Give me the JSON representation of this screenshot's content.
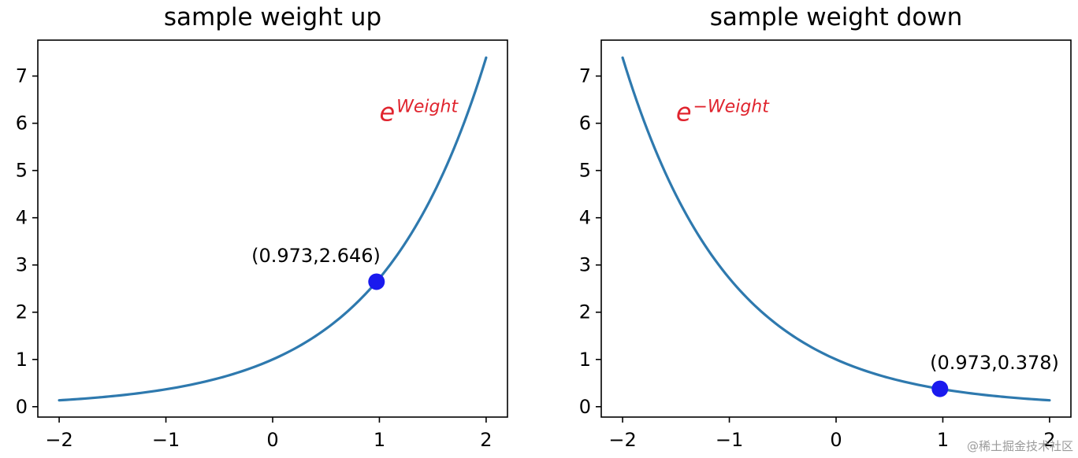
{
  "chart_data": [
    {
      "type": "line",
      "title": "sample weight up",
      "xlabel": "",
      "ylabel": "",
      "xlim": [
        -2.2,
        2.2
      ],
      "ylim": [
        -0.22,
        7.76
      ],
      "x_ticks": [
        -2,
        -1,
        0,
        1,
        2
      ],
      "x_tick_labels": [
        "−2",
        "−1",
        "0",
        "1",
        "2"
      ],
      "y_ticks": [
        0,
        1,
        2,
        3,
        4,
        5,
        6,
        7
      ],
      "y_tick_labels": [
        "0",
        "1",
        "2",
        "3",
        "4",
        "5",
        "6",
        "7"
      ],
      "series": [
        {
          "name": "exp(weight)",
          "function": "exp",
          "x_range": [
            -2,
            2
          ],
          "x": [
            -2,
            -1.5,
            -1,
            -0.5,
            0,
            0.5,
            1,
            1.5,
            2
          ],
          "y": [
            0.135,
            0.223,
            0.368,
            0.607,
            1.0,
            1.649,
            2.718,
            4.482,
            7.389
          ],
          "color": "#2e79ae"
        }
      ],
      "point": {
        "x": 0.973,
        "y": 2.646,
        "label": "(0.973,2.646)",
        "color": "#1a1aee"
      },
      "equation": {
        "base": "e",
        "exponent": "Weight",
        "x": 1.0,
        "y": 6.05,
        "color": "#e0242e"
      }
    },
    {
      "type": "line",
      "title": "sample weight down",
      "xlabel": "",
      "ylabel": "",
      "xlim": [
        -2.2,
        2.2
      ],
      "ylim": [
        -0.22,
        7.76
      ],
      "x_ticks": [
        -2,
        -1,
        0,
        1,
        2
      ],
      "x_tick_labels": [
        "−2",
        "−1",
        "0",
        "1",
        "2"
      ],
      "y_ticks": [
        0,
        1,
        2,
        3,
        4,
        5,
        6,
        7
      ],
      "y_tick_labels": [
        "0",
        "1",
        "2",
        "3",
        "4",
        "5",
        "6",
        "7"
      ],
      "series": [
        {
          "name": "exp(-weight)",
          "function": "exp_neg",
          "x_range": [
            -2,
            2
          ],
          "x": [
            -2,
            -1.5,
            -1,
            -0.5,
            0,
            0.5,
            1,
            1.5,
            2
          ],
          "y": [
            7.389,
            4.482,
            2.718,
            1.649,
            1.0,
            0.607,
            0.368,
            0.223,
            0.135
          ],
          "color": "#2e79ae"
        }
      ],
      "point": {
        "x": 0.973,
        "y": 0.378,
        "label": "(0.973,0.378)",
        "color": "#1a1aee"
      },
      "equation": {
        "base": "e",
        "exponent": "−Weight",
        "x": -1.5,
        "y": 6.05,
        "color": "#e0242e"
      }
    }
  ],
  "watermark": "@稀土掘金技术社区"
}
